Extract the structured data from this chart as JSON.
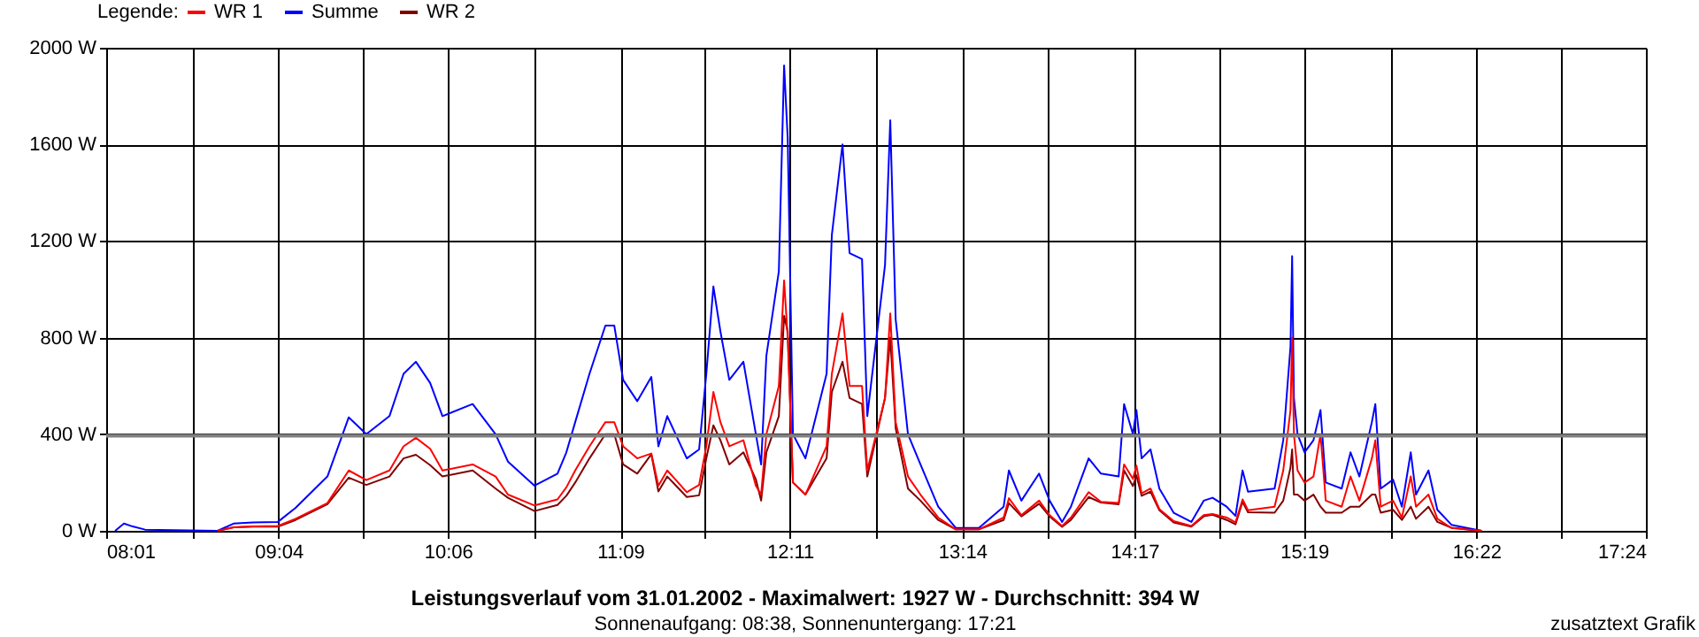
{
  "chart_data": {
    "type": "line",
    "title": "Leistungsverlauf vom 31.01.2002 - Maximalwert: 1927 W - Durchschnitt: 394 W",
    "subtitle": "Sonnenaufgang: 08:38, Sonnenuntergang: 17:21",
    "legend_title": "Legende:",
    "annotations": [
      "zusatztext Grafik"
    ],
    "x": [
      8.071,
      8.125,
      8.178,
      8.254,
      8.696,
      8.793,
      8.912,
      9.063,
      9.171,
      9.365,
      9.495,
      9.602,
      9.743,
      9.829,
      9.904,
      9.991,
      10.066,
      10.25,
      10.39,
      10.465,
      10.627,
      10.767,
      10.821,
      10.875,
      10.962,
      11.059,
      11.113,
      11.167,
      11.253,
      11.339,
      11.382,
      11.436,
      11.555,
      11.63,
      11.674,
      11.717,
      11.76,
      11.814,
      11.9,
      11.976,
      12.008,
      12.04,
      12.116,
      12.148,
      12.17,
      12.202,
      12.278,
      12.407,
      12.439,
      12.504,
      12.547,
      12.623,
      12.655,
      12.763,
      12.795,
      12.828,
      12.903,
      12.979,
      13.087,
      13.194,
      13.335,
      13.486,
      13.518,
      13.594,
      13.702,
      13.766,
      13.842,
      13.896,
      14.004,
      14.079,
      14.187,
      14.22,
      14.274,
      14.295,
      14.327,
      14.381,
      14.435,
      14.522,
      14.63,
      14.705,
      14.759,
      14.845,
      14.899,
      14.942,
      14.975,
      15.137,
      15.19,
      15.234,
      15.244,
      15.255,
      15.277,
      15.32,
      15.374,
      15.417,
      15.449,
      15.546,
      15.6,
      15.654,
      15.73,
      15.751,
      15.784,
      15.859,
      15.913,
      15.967,
      15.999,
      16.075,
      16.129,
      16.215,
      16.399
    ],
    "series": [
      {
        "name": "WR 1",
        "color": "#ff0000",
        "values": [
          null,
          null,
          null,
          null,
          0,
          15,
          18,
          20,
          50,
          115,
          250,
          210,
          250,
          350,
          385,
          340,
          250,
          275,
          225,
          150,
          105,
          130,
          180,
          250,
          350,
          450,
          450,
          350,
          300,
          320,
          187,
          250,
          160,
          190,
          350,
          575,
          450,
          350,
          375,
          187,
          150,
          400,
          600,
          1037,
          800,
          200,
          150,
          350,
          650,
          900,
          600,
          600,
          250,
          550,
          900,
          450,
          225,
          150,
          55,
          6,
          6,
          55,
          135,
          65,
          125,
          65,
          20,
          55,
          160,
          120,
          115,
          275,
          215,
          270,
          155,
          175,
          90,
          40,
          20,
          65,
          70,
          55,
          35,
          130,
          85,
          100,
          250,
          500,
          800,
          400,
          250,
          200,
          225,
          400,
          125,
          100,
          225,
          125,
          300,
          375,
          100,
          125,
          55,
          225,
          100,
          150,
          50,
          12,
          0
        ]
      },
      {
        "name": "Summe",
        "color": "#0000ff",
        "values": [
          0,
          30,
          18,
          5,
          0,
          30,
          35,
          37,
          95,
          225,
          470,
          400,
          475,
          650,
          700,
          612,
          475,
          525,
          400,
          287,
          187,
          237,
          325,
          450,
          650,
          850,
          850,
          625,
          537,
          637,
          350,
          475,
          300,
          337,
          650,
          1012,
          825,
          625,
          700,
          400,
          275,
          725,
          1075,
          1927,
          1625,
          400,
          300,
          650,
          1225,
          1600,
          1150,
          1125,
          475,
          1100,
          1700,
          875,
          400,
          275,
          100,
          12,
          12,
          100,
          250,
          125,
          237,
          125,
          37,
          100,
          300,
          237,
          225,
          525,
          400,
          500,
          300,
          337,
          175,
          75,
          37,
          125,
          137,
          100,
          62,
          250,
          162,
          175,
          375,
          762,
          1137,
          550,
          400,
          325,
          375,
          500,
          200,
          175,
          325,
          225,
          450,
          525,
          175,
          212,
          100,
          325,
          150,
          250,
          87,
          25,
          0
        ]
      },
      {
        "name": "WR 2",
        "color": "#800000",
        "values": [
          null,
          null,
          null,
          null,
          0,
          15,
          17,
          17,
          45,
          110,
          220,
          190,
          225,
          300,
          315,
          272,
          225,
          250,
          175,
          137,
          82,
          107,
          145,
          200,
          300,
          400,
          400,
          275,
          237,
          317,
          163,
          225,
          140,
          147,
          300,
          437,
          375,
          275,
          325,
          213,
          125,
          325,
          475,
          890,
          825,
          200,
          150,
          300,
          575,
          700,
          550,
          525,
          225,
          550,
          800,
          425,
          175,
          125,
          45,
          6,
          6,
          45,
          115,
          60,
          112,
          60,
          17,
          45,
          140,
          117,
          110,
          250,
          185,
          230,
          145,
          162,
          85,
          35,
          17,
          60,
          67,
          45,
          27,
          120,
          77,
          75,
          125,
          262,
          337,
          150,
          150,
          125,
          150,
          100,
          75,
          75,
          100,
          100,
          150,
          150,
          75,
          87,
          45,
          100,
          50,
          100,
          37,
          13,
          0
        ]
      }
    ],
    "xlim": [
      8.0167,
      17.4
    ],
    "xticks": [
      {
        "value": 8.0167,
        "label": "08:01"
      },
      {
        "value": 8.5417,
        "label": null
      },
      {
        "value": 9.0667,
        "label": "09:04"
      },
      {
        "value": 9.5833,
        "label": null
      },
      {
        "value": 10.1,
        "label": "10:06"
      },
      {
        "value": 10.625,
        "label": null
      },
      {
        "value": 11.15,
        "label": "11:09"
      },
      {
        "value": 11.6667,
        "label": null
      },
      {
        "value": 12.1833,
        "label": "12:11"
      },
      {
        "value": 12.7083,
        "label": null
      },
      {
        "value": 13.2333,
        "label": "13:14"
      },
      {
        "value": 13.7583,
        "label": null
      },
      {
        "value": 14.2833,
        "label": "14:17"
      },
      {
        "value": 14.8,
        "label": null
      },
      {
        "value": 15.3167,
        "label": "15:19"
      },
      {
        "value": 15.8417,
        "label": null
      },
      {
        "value": 16.3667,
        "label": "16:22"
      },
      {
        "value": 16.8833,
        "label": null
      },
      {
        "value": 17.4,
        "label": "17:24"
      }
    ],
    "ylim": [
      0,
      2000
    ],
    "yticks": [
      {
        "value": 0,
        "label": "0 W"
      },
      {
        "value": 400,
        "label": "400 W"
      },
      {
        "value": 800,
        "label": "800 W"
      },
      {
        "value": 1200,
        "label": "1200 W"
      },
      {
        "value": 1600,
        "label": "1600 W"
      },
      {
        "value": 2000,
        "label": "2000 W"
      }
    ],
    "ref_lines": [
      {
        "axis": "y",
        "value": 394,
        "label": null,
        "color": "#808080"
      }
    ],
    "grid": true,
    "legend": "top left",
    "marker": "none",
    "line_style": "solid"
  }
}
